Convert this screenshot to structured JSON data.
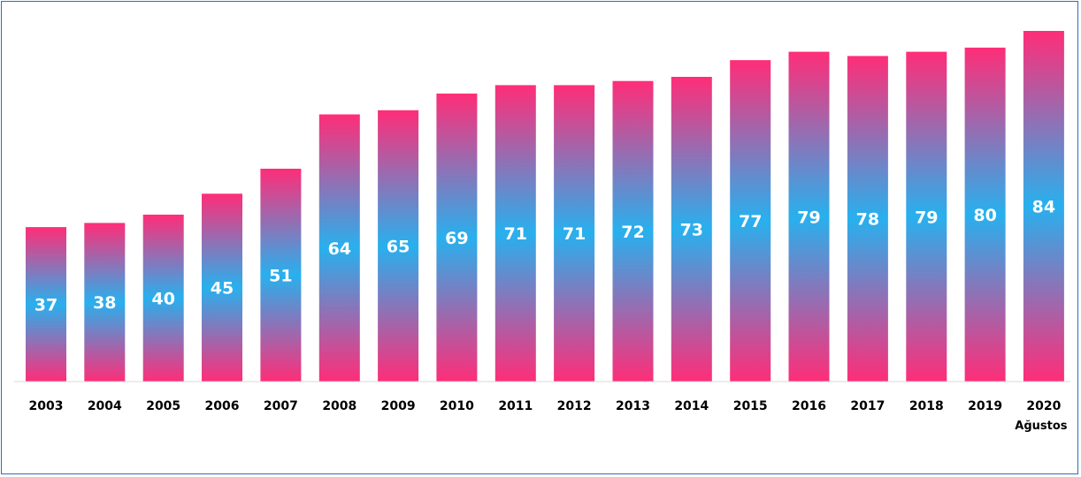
{
  "chart_data": {
    "type": "bar",
    "categories": [
      "2003",
      "2004",
      "2005",
      "2006",
      "2007",
      "2008",
      "2009",
      "2010",
      "2011",
      "2012",
      "2013",
      "2014",
      "2015",
      "2016",
      "2017",
      "2018",
      "2019",
      "2020"
    ],
    "category_sublabels": {
      "2020": "Ağustos"
    },
    "values": [
      37,
      38,
      40,
      45,
      51,
      64,
      65,
      69,
      71,
      71,
      72,
      73,
      77,
      79,
      78,
      79,
      80,
      84
    ],
    "data_labels_shown": true,
    "title": "",
    "xlabel": "",
    "ylabel": "",
    "ylim": [
      0,
      84
    ],
    "grid": false,
    "legend": "none",
    "colors": {
      "bar_edge": "#ff2d78",
      "bar_center": "#28b0ee",
      "label": "#ffffff",
      "axis_text": "#000000",
      "frame": "#2e6fb8",
      "axis_line": "#d9d9d9"
    }
  }
}
